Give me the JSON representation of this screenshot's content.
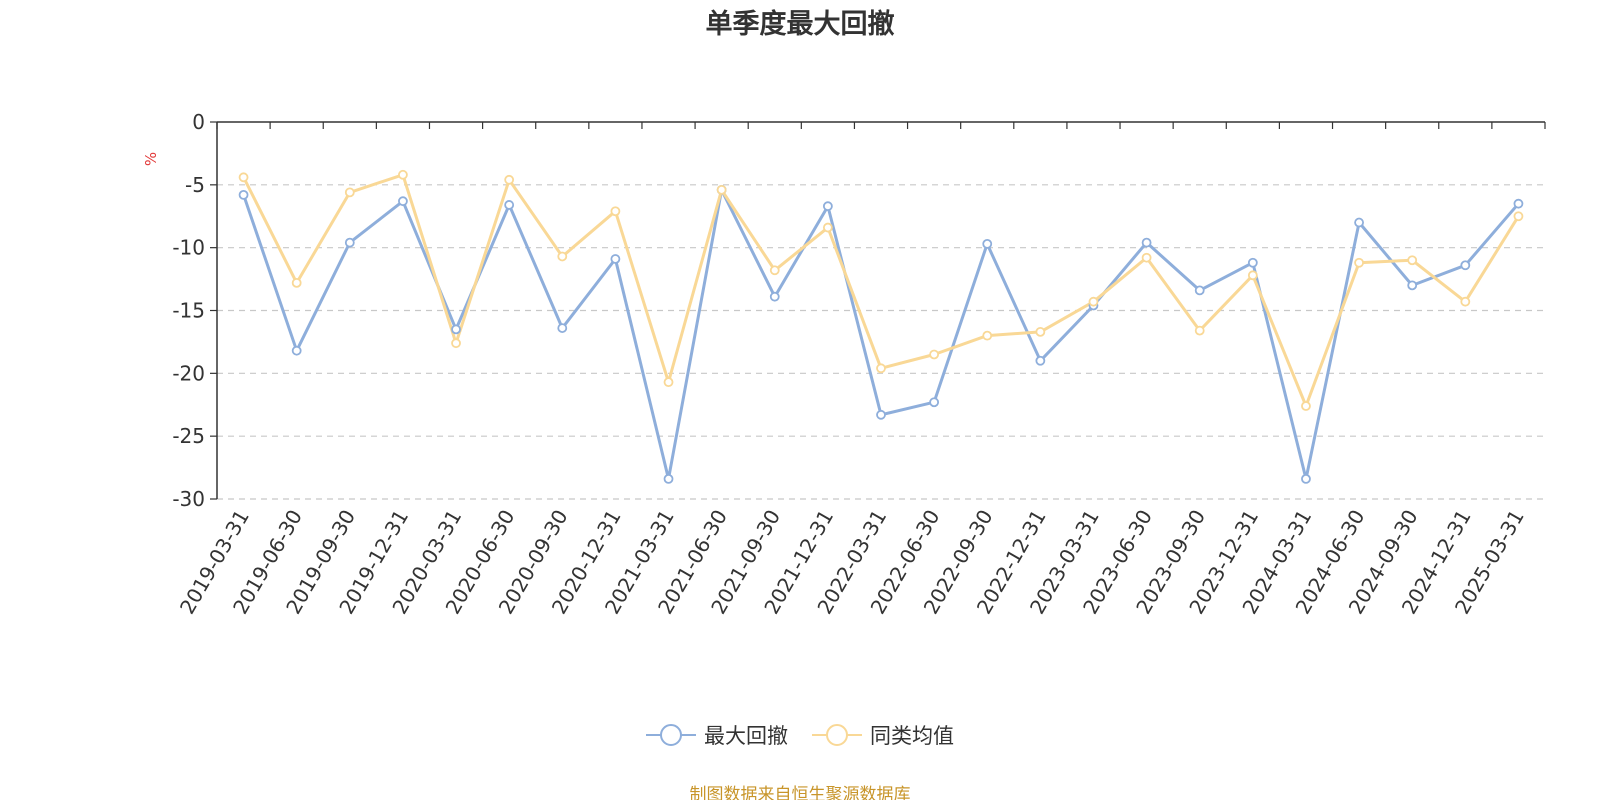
{
  "colors": {
    "series1": "#8eaedb",
    "series2": "#f9d896",
    "grid": "#c8c8c8",
    "axis": "#333333",
    "unit": "#e23a3a",
    "source": "#c8952a"
  },
  "source_text": "制图数据来自恒生聚源数据库",
  "chart_data": {
    "type": "line",
    "title": "单季度最大回撤",
    "ylabel": "%",
    "xlabel": "",
    "ylim": [
      -30,
      0
    ],
    "yticks": [
      0,
      -5,
      -10,
      -15,
      -20,
      -25,
      -30
    ],
    "grid": true,
    "legend_position": "bottom",
    "categories": [
      "2019-03-31",
      "2019-06-30",
      "2019-09-30",
      "2019-12-31",
      "2020-03-31",
      "2020-06-30",
      "2020-09-30",
      "2020-12-31",
      "2021-03-31",
      "2021-06-30",
      "2021-09-30",
      "2021-12-31",
      "2022-03-31",
      "2022-06-30",
      "2022-09-30",
      "2022-12-31",
      "2023-03-31",
      "2023-06-30",
      "2023-09-30",
      "2023-12-31",
      "2024-03-31",
      "2024-06-30",
      "2024-09-30",
      "2024-12-31",
      "2025-03-31"
    ],
    "series": [
      {
        "name": "最大回撤",
        "values": [
          -5.8,
          -18.2,
          -9.6,
          -6.3,
          -16.5,
          -6.6,
          -16.4,
          -10.9,
          -28.4,
          -5.4,
          -13.9,
          -6.7,
          -23.3,
          -22.3,
          -9.7,
          -19.0,
          -14.6,
          -9.6,
          -13.4,
          -11.2,
          -28.4,
          -8.0,
          -13.0,
          -11.4,
          -6.5
        ]
      },
      {
        "name": "同类均值",
        "values": [
          -4.4,
          -12.8,
          -5.6,
          -4.2,
          -17.6,
          -4.6,
          -10.7,
          -7.1,
          -20.7,
          -5.4,
          -11.8,
          -8.4,
          -19.6,
          -18.5,
          -17.0,
          -16.7,
          -14.3,
          -10.8,
          -16.6,
          -12.2,
          -22.6,
          -11.2,
          -11.0,
          -14.3,
          -7.5
        ]
      }
    ]
  }
}
